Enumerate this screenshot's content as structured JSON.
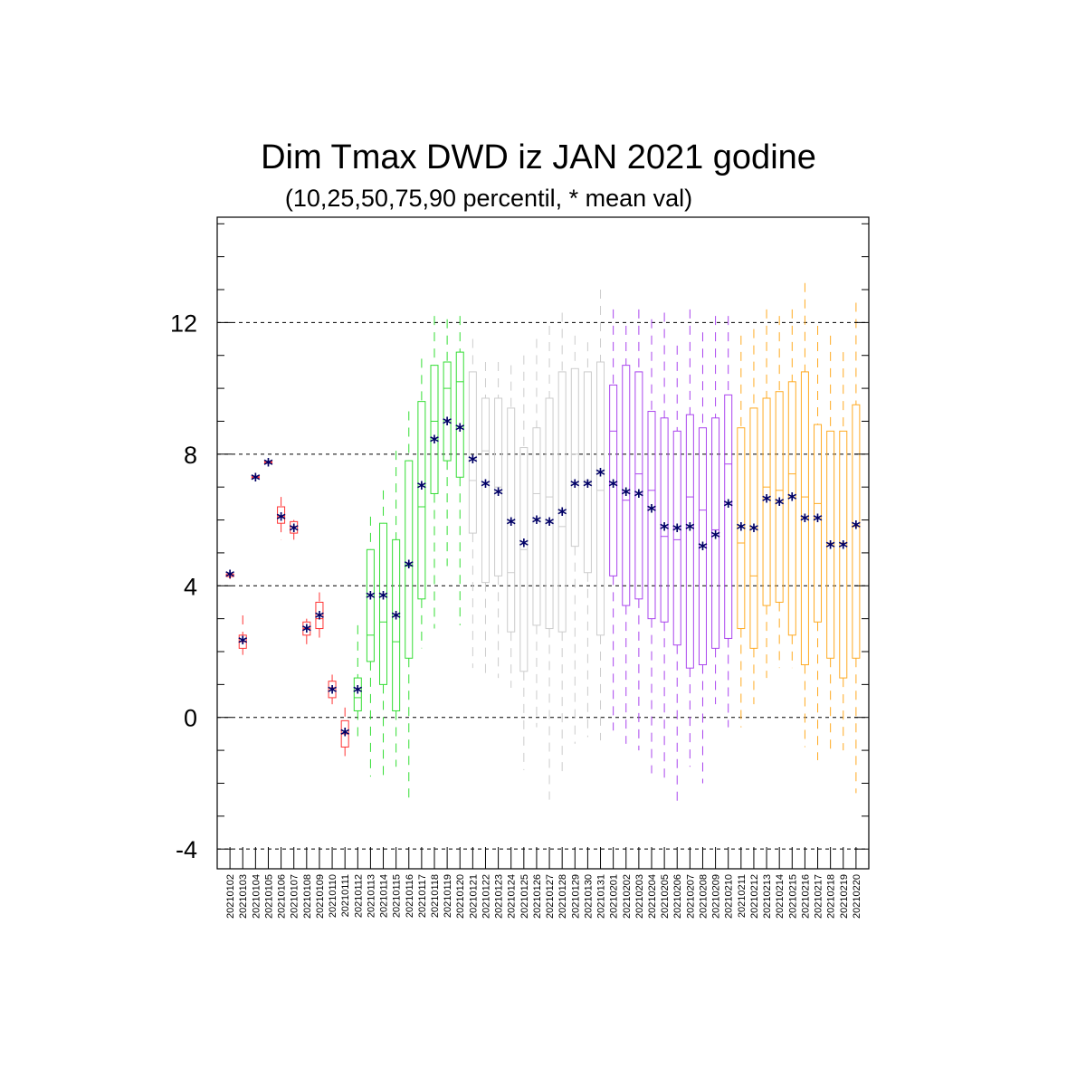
{
  "chart_data": {
    "type": "box",
    "title": "Dim Tmax DWD iz JAN 2021 godine",
    "subtitle": "(10,25,50,75,90 percentil, * mean val)",
    "ylim": [
      -4.6,
      15.2
    ],
    "yticks": [
      12,
      8,
      4,
      0,
      -4
    ],
    "grid": "horizontal dashed at 12, 8, 4, 0, -4",
    "mean_symbol": "*",
    "group_colors": {
      "Jan 02-11": "#ff3333",
      "Jan 12-20": "#33dd33",
      "Jan 21-31": "#cccccc",
      "Feb 01-10": "#aa44ee",
      "Feb 11-20": "#ffaa22"
    },
    "categories": [
      "20210102",
      "20210103",
      "20210104",
      "20210105",
      "20210106",
      "20210107",
      "20210108",
      "20210109",
      "20210110",
      "20210111",
      "20210112",
      "20210113",
      "20210114",
      "20210115",
      "20210116",
      "20210117",
      "20210118",
      "20210119",
      "20210120",
      "20210121",
      "20210122",
      "20210123",
      "20210124",
      "20210125",
      "20210126",
      "20210127",
      "20210128",
      "20210129",
      "20210130",
      "20210131",
      "20210201",
      "20210202",
      "20210203",
      "20210204",
      "20210205",
      "20210206",
      "20210207",
      "20210208",
      "20210209",
      "20210210",
      "20210211",
      "20210212",
      "20210213",
      "20210214",
      "20210215",
      "20210216",
      "20210217",
      "20210218",
      "20210219",
      "20210220"
    ],
    "colors": [
      "#ff3333",
      "#ff3333",
      "#ff3333",
      "#ff3333",
      "#ff3333",
      "#ff3333",
      "#ff3333",
      "#ff3333",
      "#ff3333",
      "#ff3333",
      "#33dd33",
      "#33dd33",
      "#33dd33",
      "#33dd33",
      "#33dd33",
      "#33dd33",
      "#33dd33",
      "#33dd33",
      "#33dd33",
      "#cccccc",
      "#cccccc",
      "#cccccc",
      "#cccccc",
      "#cccccc",
      "#cccccc",
      "#cccccc",
      "#cccccc",
      "#cccccc",
      "#cccccc",
      "#cccccc",
      "#aa44ee",
      "#aa44ee",
      "#aa44ee",
      "#aa44ee",
      "#aa44ee",
      "#aa44ee",
      "#aa44ee",
      "#aa44ee",
      "#aa44ee",
      "#aa44ee",
      "#ffaa22",
      "#ffaa22",
      "#ffaa22",
      "#ffaa22",
      "#ffaa22",
      "#ffaa22",
      "#ffaa22",
      "#ffaa22",
      "#ffaa22",
      "#ffaa22"
    ],
    "p10": [
      4.2,
      1.9,
      7.25,
      7.7,
      5.4,
      5.4,
      2.2,
      2.3,
      0.4,
      -1.2,
      -0.7,
      -1.8,
      -1.8,
      -1.5,
      -2.5,
      2.1,
      2.7,
      4.6,
      2.8,
      1.5,
      1.3,
      1.2,
      0.9,
      -1.6,
      -0.3,
      -2.5,
      -1.7,
      -0.8,
      -0.6,
      -0.7,
      -0.4,
      -0.8,
      -1.0,
      -1.7,
      -2.0,
      -2.6,
      -1.5,
      -2.0,
      0.4,
      -0.3,
      -0.3,
      0.4,
      1.2,
      1.5,
      1.5,
      -0.9,
      -1.3,
      -1.0,
      -1.0,
      -2.3
    ],
    "p25": [
      4.28,
      2.1,
      7.28,
      7.72,
      5.9,
      5.6,
      2.5,
      2.7,
      0.6,
      -0.9,
      0.2,
      1.7,
      1.0,
      0.2,
      1.8,
      3.6,
      6.8,
      7.8,
      7.3,
      5.6,
      4.1,
      4.3,
      2.6,
      1.4,
      2.8,
      2.7,
      2.6,
      5.2,
      4.4,
      2.5,
      4.3,
      3.4,
      3.6,
      3.0,
      2.9,
      2.2,
      1.5,
      1.6,
      2.1,
      2.4,
      2.7,
      2.1,
      3.4,
      3.5,
      2.5,
      1.6,
      2.9,
      1.8,
      1.2,
      1.8
    ],
    "p50": [
      4.32,
      2.3,
      7.3,
      7.75,
      6.1,
      5.8,
      2.7,
      3.0,
      0.9,
      -0.5,
      0.6,
      2.5,
      2.9,
      2.3,
      4.6,
      6.4,
      9.0,
      10.0,
      10.2,
      7.2,
      8.1,
      7.0,
      4.4,
      5.1,
      6.8,
      6.7,
      5.8,
      8.0,
      7.2,
      6.9,
      8.7,
      6.6,
      7.4,
      6.9,
      5.5,
      5.4,
      6.7,
      6.3,
      5.7,
      7.7,
      5.3,
      4.3,
      7.0,
      6.9,
      7.4,
      6.7,
      6.5,
      5.3,
      5.3,
      5.8
    ],
    "p75": [
      4.36,
      2.5,
      7.33,
      7.78,
      6.4,
      5.95,
      2.9,
      3.5,
      1.1,
      -0.1,
      1.2,
      5.1,
      5.9,
      5.4,
      7.8,
      9.6,
      10.7,
      10.8,
      11.1,
      10.5,
      9.7,
      9.7,
      9.4,
      8.2,
      8.8,
      9.7,
      10.5,
      10.6,
      10.5,
      10.8,
      10.1,
      10.7,
      10.5,
      9.3,
      9.1,
      8.7,
      9.2,
      8.8,
      9.1,
      9.8,
      8.8,
      9.4,
      9.7,
      9.9,
      10.2,
      10.5,
      8.9,
      8.7,
      8.7,
      9.5
    ],
    "p90": [
      4.45,
      3.1,
      7.36,
      7.82,
      6.7,
      6.0,
      3.0,
      3.8,
      1.3,
      0.3,
      2.8,
      6.1,
      6.9,
      8.1,
      9.3,
      10.9,
      12.2,
      12.1,
      12.2,
      11.5,
      10.8,
      10.8,
      10.7,
      11.0,
      11.5,
      11.9,
      12.3,
      11.6,
      11.4,
      13.0,
      12.4,
      11.9,
      12.4,
      12.1,
      12.3,
      11.3,
      12.4,
      11.7,
      12.2,
      12.2,
      11.6,
      11.8,
      12.4,
      12.2,
      12.4,
      13.2,
      11.9,
      11.6,
      11.1,
      12.6
    ],
    "mean": [
      4.35,
      2.35,
      7.3,
      7.75,
      6.1,
      5.75,
      2.7,
      3.1,
      0.85,
      -0.45,
      0.85,
      3.7,
      3.7,
      3.1,
      4.65,
      7.05,
      8.45,
      9.0,
      8.8,
      7.85,
      7.1,
      6.85,
      5.95,
      5.3,
      6.0,
      5.95,
      6.25,
      7.1,
      7.1,
      7.45,
      7.1,
      6.85,
      6.8,
      6.35,
      5.8,
      5.75,
      5.8,
      5.2,
      5.55,
      6.5,
      5.8,
      5.75,
      6.65,
      6.55,
      6.7,
      6.05,
      6.05,
      5.25,
      5.25,
      5.85
    ]
  }
}
